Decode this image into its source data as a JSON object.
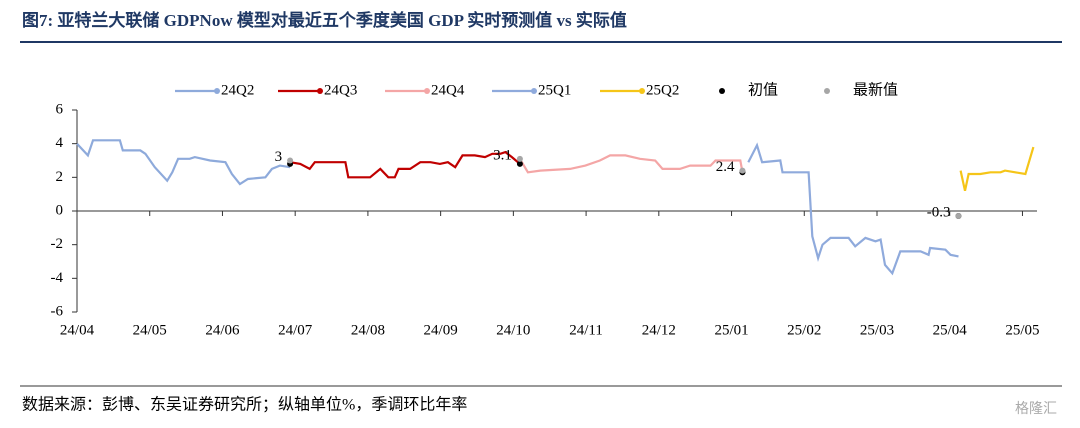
{
  "chart_data": {
    "type": "line",
    "title": "图7:  亚特兰大联储 GDPNow 模型对最近五个季度美国 GDP 实时预测值 vs 实际值",
    "source": "数据来源：彭博、东吴证券研究所；纵轴单位%，季调环比年率",
    "watermark": "格隆汇",
    "xlim": [
      0,
      13.2
    ],
    "xticks": [
      {
        "value": 0,
        "label": "24/04"
      },
      {
        "value": 1,
        "label": "24/05"
      },
      {
        "value": 2,
        "label": "24/06"
      },
      {
        "value": 3,
        "label": "24/07"
      },
      {
        "value": 4,
        "label": "24/08"
      },
      {
        "value": 5,
        "label": "24/09"
      },
      {
        "value": 6,
        "label": "24/10"
      },
      {
        "value": 7,
        "label": "24/11"
      },
      {
        "value": 8,
        "label": "24/12"
      },
      {
        "value": 9,
        "label": "25/01"
      },
      {
        "value": 10,
        "label": "25/02"
      },
      {
        "value": 11,
        "label": "25/03"
      },
      {
        "value": 12,
        "label": "25/04"
      },
      {
        "value": 13,
        "label": "25/05"
      }
    ],
    "ylim": [
      -6,
      6
    ],
    "yticks": [
      -6,
      -4,
      -2,
      0,
      2,
      4,
      6
    ],
    "series": [
      {
        "name": "24Q2",
        "color": "#8eaadb",
        "kind": "line",
        "x": [
          0,
          0.15,
          0.22,
          0.59,
          0.63,
          0.87,
          0.94,
          1.07,
          1.24,
          1.31,
          1.39,
          1.55,
          1.62,
          1.83,
          2.04,
          2.13,
          2.24,
          2.35,
          2.59,
          2.68,
          2.79,
          2.93
        ],
        "values": [
          4.0,
          3.3,
          4.2,
          4.2,
          3.6,
          3.6,
          3.4,
          2.6,
          1.8,
          2.3,
          3.1,
          3.1,
          3.2,
          3.0,
          2.9,
          2.2,
          1.6,
          1.9,
          2.0,
          2.5,
          2.7,
          2.6
        ]
      },
      {
        "name": "24Q3",
        "color": "#c00000",
        "kind": "line",
        "x": [
          2.93,
          3.07,
          3.2,
          3.27,
          3.69,
          3.73,
          3.89,
          4.03,
          4.17,
          4.28,
          4.37,
          4.42,
          4.58,
          4.72,
          4.86,
          4.99,
          5.1,
          5.2,
          5.3,
          5.47,
          5.61,
          5.71,
          5.82,
          5.89,
          5.98,
          6.09
        ],
        "values": [
          2.9,
          2.8,
          2.5,
          2.9,
          2.9,
          2.0,
          2.0,
          2.0,
          2.5,
          2.0,
          2.0,
          2.5,
          2.5,
          2.9,
          2.9,
          2.8,
          2.9,
          2.6,
          3.3,
          3.3,
          3.2,
          3.4,
          3.4,
          3.5,
          3.2,
          2.8
        ]
      },
      {
        "name": "24Q4",
        "color": "#f4a6a6",
        "kind": "line",
        "x": [
          6.09,
          6.2,
          6.37,
          6.78,
          6.99,
          7.19,
          7.33,
          7.54,
          7.74,
          7.95,
          8.05,
          8.29,
          8.43,
          8.71,
          8.78,
          9.05,
          9.12,
          9.15
        ],
        "values": [
          3.1,
          2.3,
          2.4,
          2.5,
          2.7,
          3.0,
          3.3,
          3.3,
          3.1,
          3.0,
          2.5,
          2.5,
          2.7,
          2.7,
          3.0,
          3.0,
          3.0,
          2.3
        ]
      },
      {
        "name": "25Q1",
        "color": "#8faadc",
        "kind": "line",
        "x": [
          9.23,
          9.35,
          9.42,
          9.67,
          9.7,
          10.06,
          10.11,
          10.19,
          10.25,
          10.36,
          10.61,
          10.7,
          10.84,
          10.98,
          11.05,
          11.11,
          11.21,
          11.32,
          11.6,
          11.71,
          11.73,
          11.94,
          12.01,
          12.12
        ],
        "values": [
          2.9,
          3.9,
          2.9,
          3.0,
          2.3,
          2.3,
          -1.5,
          -2.8,
          -2.0,
          -1.6,
          -1.6,
          -2.1,
          -1.6,
          -1.8,
          -1.7,
          -3.2,
          -3.7,
          -2.4,
          -2.4,
          -2.6,
          -2.2,
          -2.3,
          -2.6,
          -2.7
        ]
      },
      {
        "name": "25Q2",
        "color": "#f5c518",
        "kind": "line",
        "x": [
          12.15,
          12.21,
          12.26,
          12.42,
          12.56,
          12.7,
          12.76,
          12.9,
          13.04,
          13.15
        ],
        "values": [
          2.4,
          1.2,
          2.2,
          2.2,
          2.3,
          2.3,
          2.4,
          2.3,
          2.2,
          3.8
        ]
      },
      {
        "name": "初值",
        "color": "#000000",
        "kind": "dot",
        "x": [
          2.93,
          6.09,
          9.15,
          12.12
        ],
        "values": [
          2.8,
          2.8,
          2.3,
          -0.3
        ]
      },
      {
        "name": "最新值",
        "color": "#a6a6a6",
        "kind": "dot",
        "labels": true,
        "x": [
          2.93,
          6.09,
          9.15,
          12.12
        ],
        "values": [
          3,
          3.1,
          2.4,
          -0.3
        ]
      }
    ]
  }
}
